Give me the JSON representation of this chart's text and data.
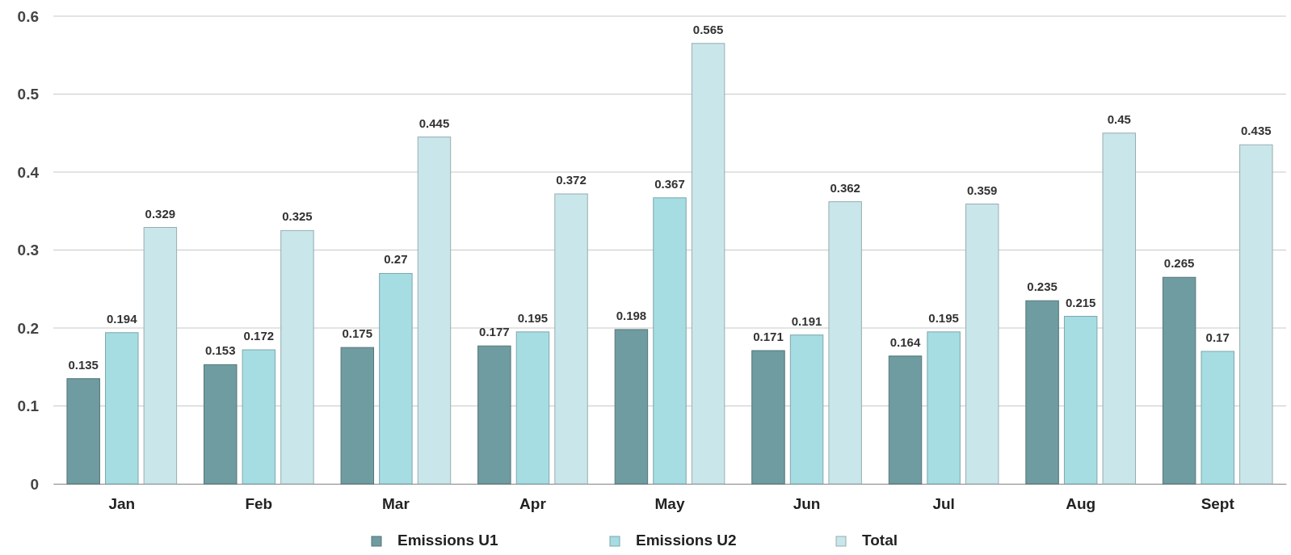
{
  "chart_data": {
    "type": "bar",
    "categories": [
      "Jan",
      "Feb",
      "Mar",
      "Apr",
      "May",
      "Jun",
      "Jul",
      "Aug",
      "Sept"
    ],
    "series": [
      {
        "name": "Emissions U1",
        "color": "#6f9ca0",
        "values": [
          0.135,
          0.153,
          0.175,
          0.177,
          0.198,
          0.171,
          0.164,
          0.235,
          0.265
        ]
      },
      {
        "name": "Emissions U2",
        "color": "#a6dde3",
        "values": [
          0.194,
          0.172,
          0.27,
          0.195,
          0.367,
          0.191,
          0.195,
          0.215,
          0.17
        ]
      },
      {
        "name": "Total",
        "color": "#c9e6ea",
        "values": [
          0.329,
          0.325,
          0.445,
          0.372,
          0.565,
          0.362,
          0.359,
          0.45,
          0.435
        ]
      }
    ],
    "ylim": [
      0,
      0.6
    ],
    "yticks": [
      0,
      0.1,
      0.2,
      0.3,
      0.4,
      0.5,
      0.6
    ],
    "grid": "y",
    "legend": "bottom",
    "data_labels": true
  }
}
